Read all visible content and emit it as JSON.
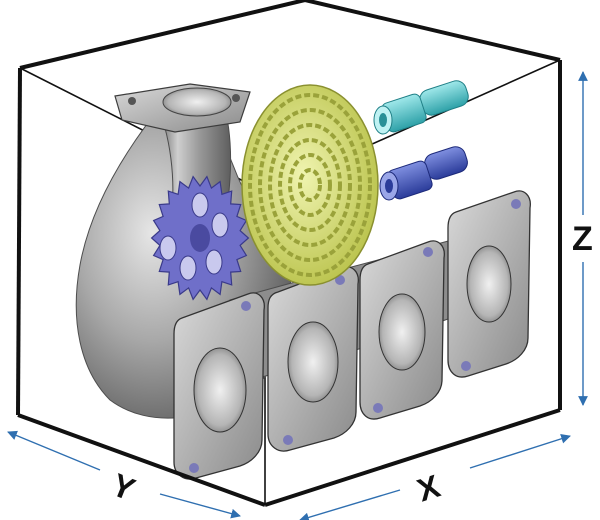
{
  "axes": {
    "x_label": "X",
    "y_label": "Y",
    "z_label": "Z"
  },
  "colors": {
    "background": "#ffffff",
    "box_edges": "#111111",
    "dimension_arrows": "#2f6fb0",
    "manifold_metal": "#8c8c8c",
    "gear": "#6f6fc9",
    "spiral_disc": "#d8df72",
    "cyan_fitting": "#46c2c8",
    "blue_fitting": "#3f52b5"
  },
  "objects": [
    {
      "name": "exhaust-manifold",
      "icon": "manifold-part-icon"
    },
    {
      "name": "spur-gear",
      "icon": "gear-icon"
    },
    {
      "name": "spiral-spring-disc",
      "icon": "spiral-disc-icon"
    },
    {
      "name": "cyan-pipe-fitting",
      "icon": "pipe-fitting-icon"
    },
    {
      "name": "blue-pipe-fitting",
      "icon": "pipe-fitting-icon"
    }
  ]
}
